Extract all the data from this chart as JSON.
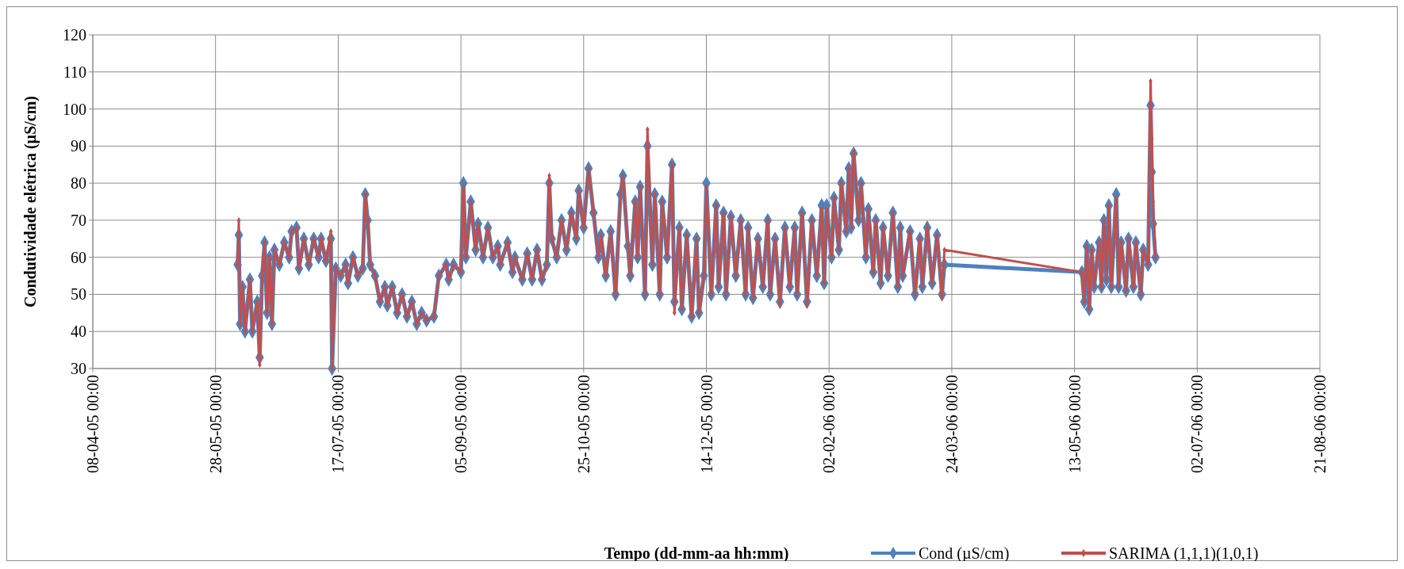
{
  "chart_data": {
    "type": "line",
    "xlabel": "Tempo (dd-mm-aa hh:mm)",
    "ylabel": "Condutividade elétrica  (µS/cm)",
    "x": [
      "2005-06-06",
      "2005-06-06T12:00",
      "2005-06-07",
      "2005-06-08",
      "2005-06-09",
      "2005-06-11",
      "2005-06-12",
      "2005-06-14",
      "2005-06-15",
      "2005-06-16",
      "2005-06-17",
      "2005-06-18",
      "2005-06-19",
      "2005-06-20",
      "2005-06-21",
      "2005-06-23",
      "2005-06-25",
      "2005-06-27",
      "2005-06-28",
      "2005-06-30",
      "2005-07-01",
      "2005-07-03",
      "2005-07-05",
      "2005-07-07",
      "2005-07-09",
      "2005-07-10",
      "2005-07-12",
      "2005-07-14",
      "2005-07-14T12:00",
      "2005-07-16",
      "2005-07-18",
      "2005-07-20",
      "2005-07-21",
      "2005-07-23",
      "2005-07-25",
      "2005-07-27",
      "2005-07-28",
      "2005-07-29",
      "2005-07-30",
      "2005-08-01",
      "2005-08-03",
      "2005-08-05",
      "2005-08-06",
      "2005-08-08",
      "2005-08-10",
      "2005-08-12",
      "2005-08-14",
      "2005-08-16",
      "2005-08-18",
      "2005-08-20",
      "2005-08-22",
      "2005-08-25",
      "2005-08-27",
      "2005-08-30",
      "2005-08-31",
      "2005-09-02",
      "2005-09-05",
      "2005-09-06",
      "2005-09-07",
      "2005-09-09",
      "2005-09-11",
      "2005-09-12",
      "2005-09-14",
      "2005-09-16",
      "2005-09-18",
      "2005-09-20",
      "2005-09-21",
      "2005-09-24",
      "2005-09-26",
      "2005-09-27",
      "2005-09-30",
      "2005-10-02",
      "2005-10-04",
      "2005-10-06",
      "2005-10-08",
      "2005-10-10",
      "2005-10-11",
      "2005-10-12",
      "2005-10-14",
      "2005-10-16",
      "2005-10-18",
      "2005-10-20",
      "2005-10-22",
      "2005-10-23",
      "2005-10-25",
      "2005-10-27",
      "2005-10-29",
      "2005-10-31",
      "2005-11-01",
      "2005-11-03",
      "2005-11-05",
      "2005-11-07",
      "2005-11-09",
      "2005-11-10",
      "2005-11-12",
      "2005-11-13",
      "2005-11-15",
      "2005-11-16",
      "2005-11-17",
      "2005-11-19",
      "2005-11-20",
      "2005-11-22",
      "2005-11-23",
      "2005-11-25",
      "2005-11-26",
      "2005-11-28",
      "2005-11-30",
      "2005-12-01",
      "2005-12-02",
      "2005-12-03",
      "2005-12-04",
      "2005-12-06",
      "2005-12-08",
      "2005-12-10",
      "2005-12-11",
      "2005-12-13",
      "2005-12-14",
      "2005-12-16",
      "2005-12-18",
      "2005-12-19",
      "2005-12-21",
      "2005-12-22",
      "2005-12-24",
      "2005-12-26",
      "2005-12-28",
      "2005-12-30",
      "2005-12-31",
      "2006-01-02",
      "2006-01-04",
      "2006-01-06",
      "2006-01-08",
      "2006-01-09",
      "2006-01-11",
      "2006-01-13",
      "2006-01-15",
      "2006-01-17",
      "2006-01-19",
      "2006-01-20",
      "2006-01-22",
      "2006-01-24",
      "2006-01-26",
      "2006-01-28",
      "2006-01-30",
      "2006-01-31",
      "2006-02-01",
      "2006-02-03",
      "2006-02-04",
      "2006-02-06",
      "2006-02-07",
      "2006-02-09",
      "2006-02-10",
      "2006-02-11",
      "2006-02-12",
      "2006-02-14",
      "2006-02-15",
      "2006-02-17",
      "2006-02-18",
      "2006-02-20",
      "2006-02-21",
      "2006-02-23",
      "2006-02-24",
      "2006-02-26",
      "2006-02-28",
      "2006-03-02",
      "2006-03-03",
      "2006-03-04",
      "2006-03-07",
      "2006-03-09",
      "2006-03-11",
      "2006-03-12",
      "2006-03-14",
      "2006-03-16",
      "2006-03-18",
      "2006-03-20",
      "2006-03-21",
      "2006-05-16",
      "2006-05-17",
      "2006-05-18",
      "2006-05-19",
      "2006-05-20",
      "2006-05-21",
      "2006-05-23",
      "2006-05-24",
      "2006-05-25",
      "2006-05-26",
      "2006-05-27",
      "2006-05-28",
      "2006-05-30",
      "2006-05-31",
      "2006-06-01",
      "2006-06-03",
      "2006-06-04",
      "2006-06-06",
      "2006-06-07",
      "2006-06-09",
      "2006-06-10",
      "2006-06-12",
      "2006-06-13",
      "2006-06-13T12:00",
      "2006-06-14",
      "2006-06-15"
    ],
    "series": [
      {
        "name": "Cond (µS/cm)",
        "color": "#4f81bd",
        "marker": "diamond",
        "values": [
          58,
          66,
          42,
          52,
          40,
          54,
          40,
          48,
          33,
          55,
          64,
          45,
          60,
          42,
          62,
          58,
          64,
          60,
          67,
          68,
          57,
          65,
          58,
          65,
          60,
          65,
          59,
          65,
          30,
          57,
          55,
          58,
          53,
          60,
          55,
          57,
          77,
          70,
          58,
          55,
          48,
          52,
          47,
          52,
          45,
          50,
          44,
          48,
          42,
          45,
          43,
          44,
          55,
          58,
          54,
          58,
          56,
          80,
          60,
          75,
          62,
          69,
          60,
          68,
          60,
          63,
          58,
          64,
          56,
          60,
          54,
          61,
          54,
          62,
          54,
          58,
          80,
          65,
          60,
          70,
          62,
          72,
          65,
          78,
          68,
          84,
          72,
          60,
          66,
          55,
          67,
          50,
          77,
          82,
          63,
          55,
          75,
          60,
          79,
          50,
          90,
          58,
          77,
          50,
          75,
          60,
          85,
          48,
          58,
          68,
          46,
          66,
          44,
          65,
          45,
          55,
          80,
          50,
          74,
          52,
          72,
          50,
          71,
          55,
          70,
          50,
          68,
          49,
          65,
          52,
          70,
          50,
          65,
          48,
          68,
          52,
          68,
          50,
          72,
          48,
          70,
          55,
          74,
          53,
          74,
          60,
          76,
          62,
          80,
          67,
          84,
          68,
          88,
          70,
          80,
          60,
          73,
          56,
          70,
          53,
          68,
          55,
          72,
          52,
          68,
          55,
          67,
          50,
          65,
          52,
          68,
          53,
          66,
          50,
          58,
          56,
          48,
          63,
          46,
          62,
          52,
          64,
          52,
          70,
          54,
          74,
          52,
          77,
          52,
          64,
          51,
          65,
          52,
          64,
          50,
          62,
          58,
          101,
          83,
          69,
          60
        ]
      },
      {
        "name": "SARIMA (1,1,1)(1,0,1)",
        "color": "#c0504d",
        "marker": "diamond",
        "values": [
          58,
          70,
          42,
          52,
          40,
          54,
          40,
          48,
          31,
          55,
          64,
          45,
          60,
          42,
          62,
          58,
          64,
          60,
          67,
          68,
          57,
          65,
          58,
          65,
          60,
          65,
          59,
          67,
          30,
          57,
          55,
          58,
          53,
          60,
          55,
          57,
          77,
          70,
          58,
          55,
          48,
          52,
          47,
          52,
          45,
          50,
          44,
          48,
          42,
          45,
          43,
          44,
          55,
          58,
          54,
          58,
          56,
          79,
          60,
          75,
          62,
          69,
          60,
          68,
          60,
          63,
          58,
          64,
          56,
          60,
          54,
          61,
          54,
          62,
          54,
          58,
          82,
          65,
          60,
          70,
          62,
          72,
          65,
          78,
          68,
          84,
          72,
          60,
          66,
          55,
          67,
          50,
          77,
          82,
          63,
          55,
          75,
          60,
          79,
          50,
          94.5,
          58,
          77,
          50,
          75,
          60,
          85,
          45,
          58,
          68,
          46,
          66,
          44,
          65,
          45,
          55,
          79,
          50,
          74,
          52,
          72,
          50,
          71,
          55,
          70,
          50,
          68,
          49,
          65,
          52,
          70,
          50,
          65,
          47,
          68,
          52,
          68,
          50,
          72,
          47,
          70,
          55,
          73,
          53,
          73,
          60,
          76,
          62,
          80,
          67,
          84,
          68,
          88.5,
          70,
          80,
          60,
          73,
          56,
          70,
          53,
          68,
          55,
          72,
          52,
          68,
          55,
          67,
          50,
          65,
          52,
          68,
          53,
          66,
          49,
          62,
          56,
          48,
          63,
          46,
          62,
          52,
          64,
          52,
          70,
          54,
          74,
          52,
          76,
          52,
          64,
          51,
          65,
          52,
          64,
          50,
          62,
          58,
          107.5,
          92,
          75,
          60
        ]
      }
    ],
    "xlim": [
      "2005-04-08",
      "2006-08-21"
    ],
    "xticks": [
      {
        "value": "2005-04-08",
        "label": "08-04-05 00:00"
      },
      {
        "value": "2005-05-28",
        "label": "28-05-05 00:00"
      },
      {
        "value": "2005-07-17",
        "label": "17-07-05 00:00"
      },
      {
        "value": "2005-09-05",
        "label": "05-09-05 00:00"
      },
      {
        "value": "2005-10-25",
        "label": "25-10-05 00:00"
      },
      {
        "value": "2005-12-14",
        "label": "14-12-05 00:00"
      },
      {
        "value": "2006-02-02",
        "label": "02-02-06 00:00"
      },
      {
        "value": "2006-03-24",
        "label": "24-03-06 00:00"
      },
      {
        "value": "2006-05-13",
        "label": "13-05-06 00:00"
      },
      {
        "value": "2006-07-02",
        "label": "02-07-06 00:00"
      },
      {
        "value": "2006-08-21",
        "label": "21-08-06 00:00"
      }
    ],
    "ylim": [
      30,
      120
    ],
    "yticks": [
      30,
      40,
      50,
      60,
      70,
      80,
      90,
      100,
      110,
      120
    ],
    "grid": true,
    "legend": "bottom",
    "line_style": "solid"
  }
}
